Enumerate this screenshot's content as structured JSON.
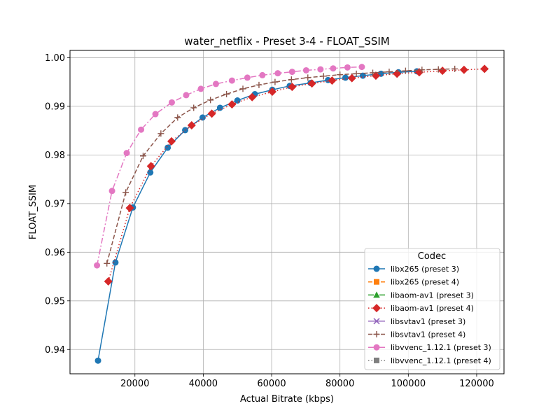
{
  "chart_data": {
    "type": "line",
    "title": "water_netflix - Preset 3-4 - FLOAT_SSIM",
    "xlabel": "Actual Bitrate (kbps)",
    "ylabel": "FLOAT_SSIM",
    "xlim": [
      1000,
      128000
    ],
    "ylim": [
      0.935,
      1.0015
    ],
    "xticks": [
      20000,
      40000,
      60000,
      80000,
      100000,
      120000
    ],
    "xtick_labels": [
      "20000",
      "40000",
      "60000",
      "80000",
      "100000",
      "120000"
    ],
    "yticks": [
      0.94,
      0.95,
      0.96,
      0.97,
      0.98,
      0.99,
      1.0
    ],
    "ytick_labels": [
      "0.94",
      "0.95",
      "0.96",
      "0.97",
      "0.98",
      "0.99",
      "1.00"
    ],
    "grid": true,
    "legend_title": "Codec",
    "legend_position": "lower right",
    "series": [
      {
        "name": "libx265 (preset 3)",
        "color": "#1f77b4",
        "dash": "solid",
        "marker": "circle",
        "x": [
          9200,
          14300,
          19400,
          24500,
          29600,
          34700,
          39800,
          44900,
          50000,
          55100,
          60200,
          65300,
          71400,
          76500,
          81600,
          86700,
          92000,
          97100,
          102500
        ],
        "y": [
          0.9377,
          0.9579,
          0.9692,
          0.9764,
          0.9815,
          0.9851,
          0.9877,
          0.9897,
          0.9912,
          0.9925,
          0.9934,
          0.9942,
          0.9948,
          0.9954,
          0.9959,
          0.9963,
          0.9967,
          0.997,
          0.9972
        ]
      },
      {
        "name": "libx265 (preset 4)",
        "color": "#ff7f0e",
        "dash": "dashed",
        "marker": "square",
        "x": [],
        "y": []
      },
      {
        "name": "libaom-av1 (preset 3)",
        "color": "#2ca02c",
        "dash": "dashdot",
        "marker": "triangle",
        "x": [],
        "y": []
      },
      {
        "name": "libaom-av1 (preset 4)",
        "color": "#d62728",
        "dash": "dotted",
        "marker": "diamond",
        "x": [
          12200,
          18500,
          24700,
          30700,
          36600,
          42500,
          48400,
          54300,
          60200,
          66000,
          71800,
          77700,
          83500,
          90500,
          96700,
          103200,
          110000,
          116300,
          122300
        ],
        "y": [
          0.954,
          0.9691,
          0.9777,
          0.9828,
          0.9861,
          0.9885,
          0.9904,
          0.9919,
          0.993,
          0.994,
          0.9947,
          0.9953,
          0.9958,
          0.9963,
          0.9967,
          0.997,
          0.9973,
          0.9975,
          0.9977
        ]
      },
      {
        "name": "libsvtav1 (preset 3)",
        "color": "#9467bd",
        "dash": "solid",
        "marker": "x",
        "x": [],
        "y": []
      },
      {
        "name": "libsvtav1 (preset 4)",
        "color": "#8c564b",
        "dash": "dashed",
        "marker": "plus",
        "x": [
          11800,
          17300,
          22400,
          27600,
          32500,
          37200,
          42100,
          46800,
          51600,
          56300,
          61000,
          65800,
          70600,
          75200,
          80000,
          84800,
          89600,
          94400,
          99200,
          104000,
          108800,
          113600
        ],
        "y": [
          0.9577,
          0.9723,
          0.9798,
          0.9844,
          0.9877,
          0.9897,
          0.9913,
          0.9925,
          0.9936,
          0.9944,
          0.995,
          0.9955,
          0.9959,
          0.9962,
          0.9965,
          0.9967,
          0.9969,
          0.9971,
          0.9973,
          0.9975,
          0.9976,
          0.9977
        ]
      },
      {
        "name": "libvvenc_1.12.1 (preset 3)",
        "color": "#e377c2",
        "dash": "dashdot",
        "marker": "circle",
        "x": [
          8900,
          13300,
          17600,
          21800,
          26000,
          30800,
          35000,
          39300,
          43700,
          48400,
          52900,
          57300,
          61800,
          66000,
          70100,
          74300,
          78000,
          82200,
          86400
        ],
        "y": [
          0.9573,
          0.9726,
          0.9804,
          0.9852,
          0.9884,
          0.9908,
          0.9923,
          0.9936,
          0.9946,
          0.9953,
          0.9959,
          0.9964,
          0.9968,
          0.9971,
          0.9974,
          0.9976,
          0.9978,
          0.998,
          0.9981
        ]
      },
      {
        "name": "libvvenc_1.12.1 (preset 4)",
        "color": "#7f7f7f",
        "dash": "dotted",
        "marker": "square",
        "x": [],
        "y": []
      }
    ]
  }
}
